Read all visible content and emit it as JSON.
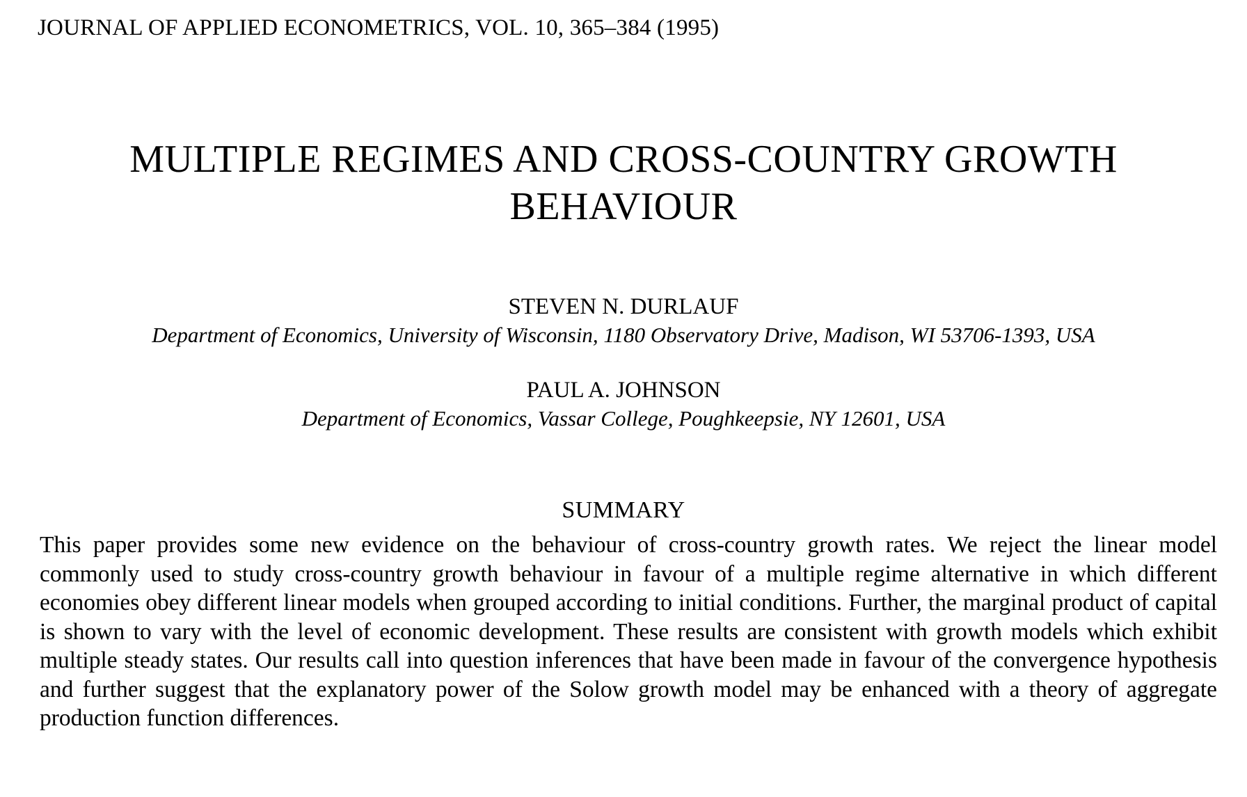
{
  "journal": {
    "header": "JOURNAL OF APPLIED ECONOMETRICS, VOL. 10, 365–384 (1995)"
  },
  "title": {
    "line1": "MULTIPLE REGIMES AND CROSS-COUNTRY GROWTH",
    "line2": "BEHAVIOUR"
  },
  "authors": [
    {
      "name": "STEVEN N. DURLAUF",
      "affiliation": "Department of Economics, University of Wisconsin, 1180 Observatory Drive, Madison, WI 53706-1393, USA"
    },
    {
      "name": "PAUL A. JOHNSON",
      "affiliation": "Department of Economics, Vassar College, Poughkeepsie, NY 12601, USA"
    }
  ],
  "summary": {
    "heading": "SUMMARY",
    "text": "This paper provides some new evidence on the behaviour of cross-country growth rates. We reject the linear model commonly used to study cross-country growth behaviour in favour of a multiple regime alternative in which different economies obey different linear models when grouped according to initial conditions. Further, the marginal product of capital is shown to vary with the level of economic development. These results are consistent with growth models which exhibit multiple steady states. Our results call into question inferences that have been made in favour of the convergence hypothesis and further suggest that the explanatory power of the Solow growth model may be enhanced with a theory of aggregate production function differences."
  }
}
